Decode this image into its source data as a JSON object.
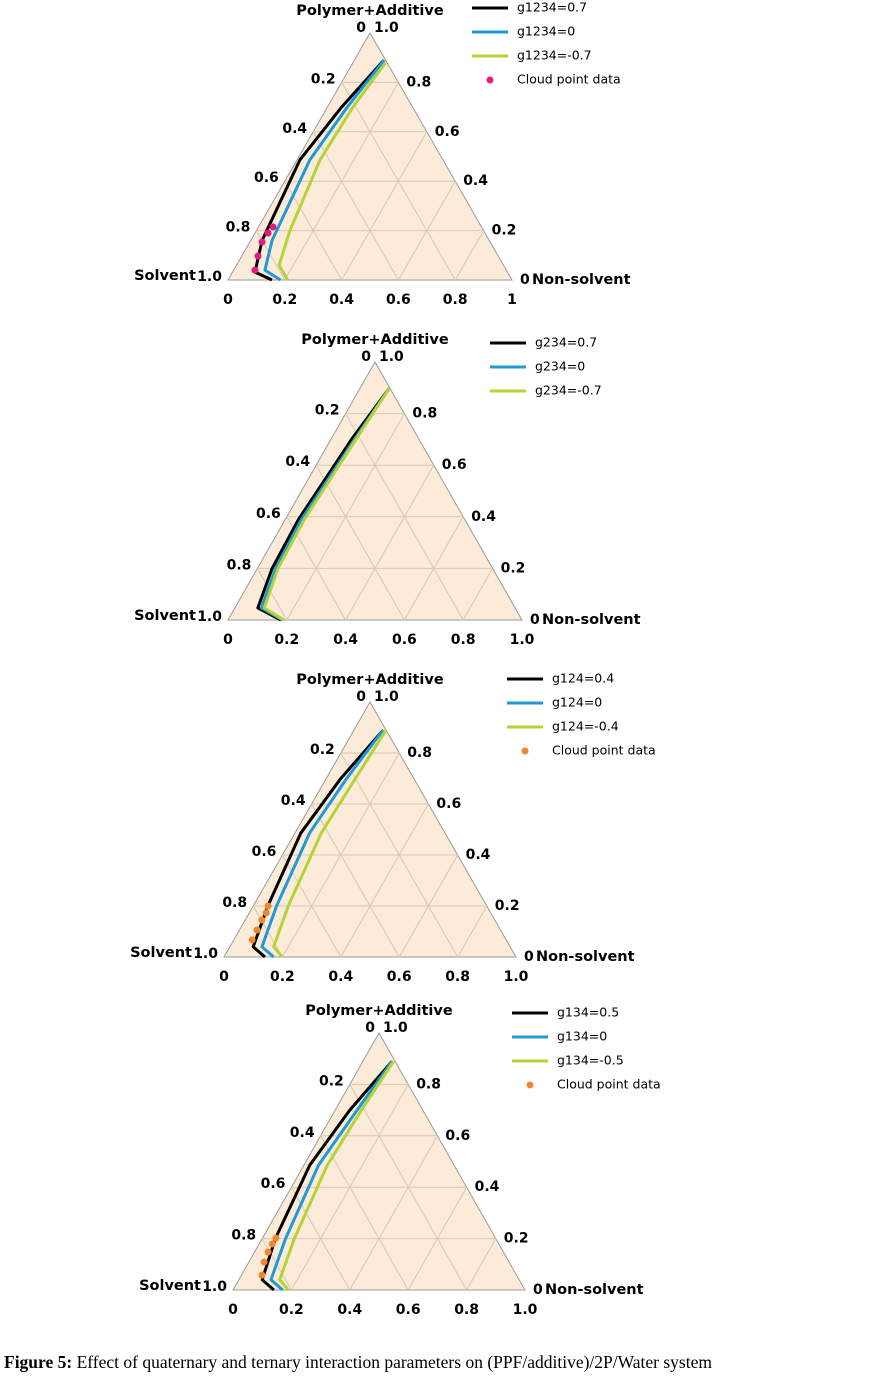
{
  "chart_data": [
    {
      "type": "ternary",
      "top_label": "Polymer+Additive",
      "left_label": "Solvent",
      "right_label": "Non-solvent",
      "xticks": [
        0,
        0.2,
        0.4,
        0.6,
        0.8,
        1
      ],
      "yticks": [
        0,
        0.2,
        0.4,
        0.6,
        0.8,
        {
          "value": 1,
          "label": "1.0"
        }
      ],
      "zticks": [
        0,
        0.2,
        0.4,
        0.6,
        0.8,
        {
          "value": 1,
          "label": "1.0"
        }
      ],
      "grid": true,
      "series": [
        {
          "name": "g1234=0.7",
          "color": "#000000",
          "x": [
            0.155,
            0.079,
            0.04,
            0.01,
            0.05,
            0.104
          ],
          "values": [
            0,
            0.032,
            0.16,
            0.486,
            0.7,
            0.89
          ]
        },
        {
          "name": "g1234=0",
          "color": "#1f9ad6",
          "x": [
            0.185,
            0.11,
            0.075,
            0.045,
            0.07,
            0.105
          ],
          "values": [
            0,
            0.04,
            0.16,
            0.486,
            0.7,
            0.89
          ]
        },
        {
          "name": "g1234=-0.7",
          "color": "#b5d334",
          "x": [
            0.21,
            0.15,
            0.118,
            0.081,
            0.09,
            0.115
          ],
          "values": [
            0,
            0.06,
            0.2,
            0.486,
            0.7,
            0.88
          ]
        },
        {
          "name": "Cloud point data",
          "color": "#e6197f",
          "marker": "dot",
          "x": [
            0.075,
            0.057,
            0.043,
            0.046,
            0.051
          ],
          "values": [
            0.04,
            0.097,
            0.154,
            0.19,
            0.215
          ]
        }
      ]
    },
    {
      "type": "ternary",
      "top_label": "Polymer+Additive",
      "left_label": "Solvent",
      "right_label": "Non-solvent",
      "xticks": [
        0,
        0.2,
        0.4,
        0.6,
        0.8,
        {
          "value": 1,
          "label": "1.0"
        }
      ],
      "yticks": [
        0,
        0.2,
        0.4,
        0.6,
        0.8,
        {
          "value": 1,
          "label": "1.0"
        }
      ],
      "zticks": [
        0,
        0.2,
        0.4,
        0.6,
        0.8,
        {
          "value": 1,
          "label": "1.0"
        }
      ],
      "grid": true,
      "series": [
        {
          "name": "g234=0.7",
          "color": "#000000",
          "x": [
            0.18,
            0.078,
            0.05,
            0.045,
            0.07,
            0.1
          ],
          "values": [
            0,
            0.047,
            0.2,
            0.39,
            0.7,
            0.9
          ]
        },
        {
          "name": "g234=0",
          "color": "#1f9ad6",
          "x": [
            0.185,
            0.09,
            0.062,
            0.055,
            0.08,
            0.1
          ],
          "values": [
            0,
            0.047,
            0.2,
            0.39,
            0.7,
            0.9
          ]
        },
        {
          "name": "g234=-0.7",
          "color": "#b5d334",
          "x": [
            0.19,
            0.1,
            0.07,
            0.065,
            0.085,
            0.1
          ],
          "values": [
            0,
            0.047,
            0.2,
            0.39,
            0.7,
            0.9
          ]
        }
      ]
    },
    {
      "type": "ternary",
      "top_label": "Polymer+Additive",
      "left_label": "Solvent",
      "right_label": "Non-solvent",
      "xticks": [
        0,
        0.2,
        0.4,
        0.6,
        0.8,
        {
          "value": 1,
          "label": "1.0"
        }
      ],
      "yticks": [
        0,
        0.2,
        0.4,
        0.6,
        0.8,
        {
          "value": 1,
          "label": "1.0"
        }
      ],
      "zticks": [
        0,
        0.2,
        0.4,
        0.6,
        0.8,
        {
          "value": 1,
          "label": "1.0"
        }
      ],
      "grid": true,
      "series": [
        {
          "name": "g124=0.4",
          "color": "#000000",
          "x": [
            0.14,
            0.08,
            0.05,
            0.02,
            0.05,
            0.1
          ],
          "values": [
            0,
            0.04,
            0.2,
            0.486,
            0.7,
            0.89
          ]
        },
        {
          "name": "g124=0",
          "color": "#1f9ad6",
          "x": [
            0.17,
            0.11,
            0.08,
            0.05,
            0.07,
            0.1
          ],
          "values": [
            0,
            0.04,
            0.2,
            0.486,
            0.7,
            0.89
          ]
        },
        {
          "name": "g124=-0.4",
          "color": "#b5d334",
          "x": [
            0.2,
            0.15,
            0.12,
            0.09,
            0.1,
            0.11
          ],
          "values": [
            0,
            0.04,
            0.2,
            0.486,
            0.7,
            0.89
          ]
        },
        {
          "name": "Cloud point data",
          "color": "#f0862d",
          "marker": "dot",
          "x": [
            0.063,
            0.06,
            0.057,
            0.058,
            0.051
          ],
          "values": [
            0.067,
            0.106,
            0.145,
            0.173,
            0.2
          ]
        }
      ]
    },
    {
      "type": "ternary",
      "top_label": "Polymer+Additive",
      "left_label": "Solvent",
      "right_label": "Non-solvent",
      "xticks": [
        0,
        0.2,
        0.4,
        0.6,
        0.8,
        {
          "value": 1,
          "label": "1.0"
        }
      ],
      "yticks": [
        0,
        0.2,
        0.4,
        0.6,
        0.8,
        {
          "value": 1,
          "label": "1.0"
        }
      ],
      "zticks": [
        0,
        0.2,
        0.4,
        0.6,
        0.8,
        {
          "value": 1,
          "label": "1.0"
        }
      ],
      "grid": true,
      "series": [
        {
          "name": "g134=0.5",
          "color": "#000000",
          "x": [
            0.14,
            0.08,
            0.045,
            0.02,
            0.05,
            0.1
          ],
          "values": [
            0,
            0.04,
            0.2,
            0.486,
            0.7,
            0.89
          ]
        },
        {
          "name": "g134=0",
          "color": "#1f9ad6",
          "x": [
            0.17,
            0.11,
            0.08,
            0.05,
            0.075,
            0.1
          ],
          "values": [
            0,
            0.04,
            0.2,
            0.486,
            0.7,
            0.89
          ]
        },
        {
          "name": "g134=-0.5",
          "color": "#b5d334",
          "x": [
            0.19,
            0.14,
            0.11,
            0.08,
            0.09,
            0.105
          ],
          "values": [
            0,
            0.04,
            0.2,
            0.486,
            0.7,
            0.89
          ]
        },
        {
          "name": "Cloud point data",
          "color": "#f0862d",
          "marker": "dot",
          "x": [
            0.07,
            0.052,
            0.046,
            0.045,
            0.046
          ],
          "values": [
            0.058,
            0.109,
            0.148,
            0.179,
            0.202
          ]
        }
      ]
    }
  ],
  "caption": {
    "label": "Figure 5:",
    "text": "Effect of quaternary and ternary interaction parameters on (PPF/additive)/2P/Water system"
  }
}
